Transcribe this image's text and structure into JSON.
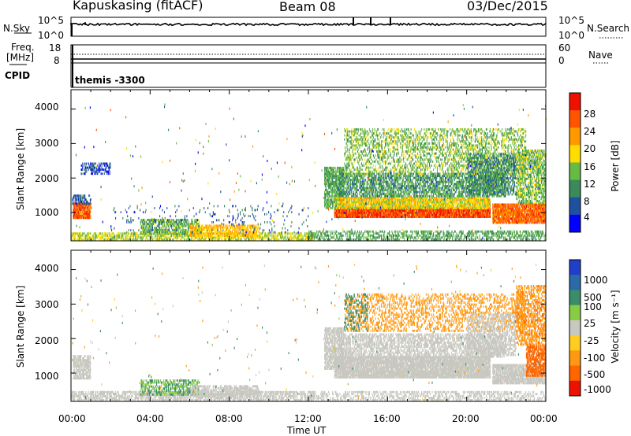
{
  "header": {
    "station": "Kapuskasing (fitACF)",
    "beam": "Beam 08",
    "date": "03/Dec/2015"
  },
  "noise_panel": {
    "left_label": "N.Sky",
    "left_ticks": [
      "10^5",
      "10^0"
    ],
    "right_label": "N.Search",
    "right_ticks": [
      "10^5",
      "10^0"
    ]
  },
  "freq_panel": {
    "left_label_line1": "Freq.",
    "left_label_line2": "[MHz]",
    "left_ticks": [
      "18",
      "8"
    ],
    "right_label": "Nave",
    "right_ticks": [
      "60",
      "0"
    ]
  },
  "cpid": {
    "label": "CPID",
    "value": "themis -3300"
  },
  "colors": {
    "power_scale": [
      "#0000ff",
      "#2050a0",
      "#3a8a5a",
      "#66bb44",
      "#ffdd00",
      "#ff9900",
      "#ff5500",
      "#ee1100"
    ],
    "velocity_scale": [
      "#2040cc",
      "#2a6aa6",
      "#3a8c6a",
      "#88cc44",
      "#c8c8c0",
      "#ffcc22",
      "#ff9911",
      "#ff6600",
      "#ee1100"
    ]
  },
  "chart_data": [
    {
      "type": "heatmap",
      "name": "power",
      "xlabel": "",
      "ylabel": "Slant Range [km]",
      "x_ticks": [
        "",
        "",
        "",
        "",
        "",
        "",
        ""
      ],
      "y_ticks": [
        "1000",
        "2000",
        "3000",
        "4000"
      ],
      "xlim_hours": [
        0,
        24
      ],
      "ylim_km": [
        180,
        4560
      ],
      "colorbar": {
        "label": "Power [dB]",
        "ticks": [
          "4",
          "8",
          "12",
          "16",
          "20",
          "24",
          "28"
        ]
      },
      "regions": [
        {
          "t0": 0.1,
          "t1": 1.0,
          "r0": 820,
          "r1": 1230,
          "v": 26,
          "d": 0.9
        },
        {
          "t0": 0.05,
          "t1": 1.0,
          "r0": 1230,
          "r1": 1500,
          "v": 6,
          "d": 0.5
        },
        {
          "t0": 0.0,
          "t1": 12.3,
          "r0": 190,
          "r1": 400,
          "v": 16,
          "d": 0.6
        },
        {
          "t0": 3.5,
          "t1": 6.5,
          "r0": 350,
          "r1": 780,
          "v": 13,
          "d": 0.6
        },
        {
          "t0": 6.0,
          "t1": 9.5,
          "r0": 300,
          "r1": 600,
          "v": 20,
          "d": 0.6
        },
        {
          "t0": 0.5,
          "t1": 2.0,
          "r0": 2100,
          "r1": 2400,
          "v": 5,
          "d": 0.4
        },
        {
          "t0": 2.0,
          "t1": 12.0,
          "r0": 400,
          "r1": 1200,
          "v": 7,
          "d": 0.05
        },
        {
          "t0": 12.8,
          "t1": 13.8,
          "r0": 1100,
          "r1": 2300,
          "v": 12,
          "d": 0.7
        },
        {
          "t0": 13.3,
          "t1": 21.2,
          "r0": 850,
          "r1": 1100,
          "v": 27,
          "d": 0.95
        },
        {
          "t0": 13.3,
          "t1": 21.2,
          "r0": 1100,
          "r1": 1450,
          "v": 18,
          "d": 0.85
        },
        {
          "t0": 13.5,
          "t1": 22.0,
          "r0": 1450,
          "r1": 2100,
          "v": 11,
          "d": 0.6
        },
        {
          "t0": 13.8,
          "t1": 23.0,
          "r0": 2100,
          "r1": 3400,
          "v": 14,
          "d": 0.35
        },
        {
          "t0": 12.0,
          "t1": 24.0,
          "r0": 190,
          "r1": 450,
          "v": 12,
          "d": 0.45
        },
        {
          "t0": 21.3,
          "t1": 24.0,
          "r0": 680,
          "r1": 1250,
          "v": 25,
          "d": 0.9
        },
        {
          "t0": 22.5,
          "t1": 24.0,
          "r0": 1250,
          "r1": 2800,
          "v": 14,
          "d": 0.6
        },
        {
          "t0": 20.0,
          "t1": 22.5,
          "r0": 1500,
          "r1": 2700,
          "v": 10,
          "d": 0.5
        }
      ]
    },
    {
      "type": "heatmap",
      "name": "velocity",
      "xlabel": "Time UT",
      "ylabel": "Slant Range [km]",
      "x_ticks": [
        "00:00",
        "04:00",
        "08:00",
        "12:00",
        "16:00",
        "20:00",
        "00:00"
      ],
      "y_ticks": [
        "1000",
        "2000",
        "3000",
        "4000"
      ],
      "xlim_hours": [
        0,
        24
      ],
      "ylim_km": [
        180,
        4560
      ],
      "colorbar": {
        "label": "Velocity [m s⁻¹]",
        "ticks": [
          "1000",
          "500",
          "100",
          "25",
          "-25",
          "-100",
          "-500",
          "-1000"
        ]
      },
      "regions": [
        {
          "t0": 0.1,
          "t1": 1.0,
          "r0": 820,
          "r1": 1500,
          "v": 0,
          "d": 0.8
        },
        {
          "t0": 0.0,
          "t1": 12.3,
          "r0": 190,
          "r1": 450,
          "v": 0,
          "d": 0.6
        },
        {
          "t0": 3.5,
          "t1": 6.5,
          "r0": 350,
          "r1": 780,
          "v": 60,
          "d": 0.5
        },
        {
          "t0": 6.0,
          "t1": 9.5,
          "r0": 300,
          "r1": 600,
          "v": 0,
          "d": 0.6
        },
        {
          "t0": 12.8,
          "t1": 13.8,
          "r0": 1100,
          "r1": 2300,
          "v": 0,
          "d": 0.7
        },
        {
          "t0": 13.3,
          "t1": 21.2,
          "r0": 850,
          "r1": 1450,
          "v": 0,
          "d": 0.9
        },
        {
          "t0": 13.5,
          "t1": 22.0,
          "r0": 1450,
          "r1": 2100,
          "v": 0,
          "d": 0.55
        },
        {
          "t0": 13.8,
          "t1": 23.0,
          "r0": 2200,
          "r1": 3300,
          "v": -150,
          "d": 0.3
        },
        {
          "t0": 13.8,
          "t1": 15.0,
          "r0": 2200,
          "r1": 3300,
          "v": 120,
          "d": 0.2
        },
        {
          "t0": 21.3,
          "t1": 24.0,
          "r0": 680,
          "r1": 1250,
          "v": 0,
          "d": 0.85
        },
        {
          "t0": 23.0,
          "t1": 24.0,
          "r0": 900,
          "r1": 1800,
          "v": -400,
          "d": 0.7
        },
        {
          "t0": 22.5,
          "t1": 24.0,
          "r0": 1800,
          "r1": 3500,
          "v": -200,
          "d": 0.5
        },
        {
          "t0": 20.0,
          "t1": 22.5,
          "r0": 1500,
          "r1": 2700,
          "v": 0,
          "d": 0.45
        },
        {
          "t0": 12.0,
          "t1": 24.0,
          "r0": 190,
          "r1": 450,
          "v": 0,
          "d": 0.4
        }
      ]
    }
  ]
}
